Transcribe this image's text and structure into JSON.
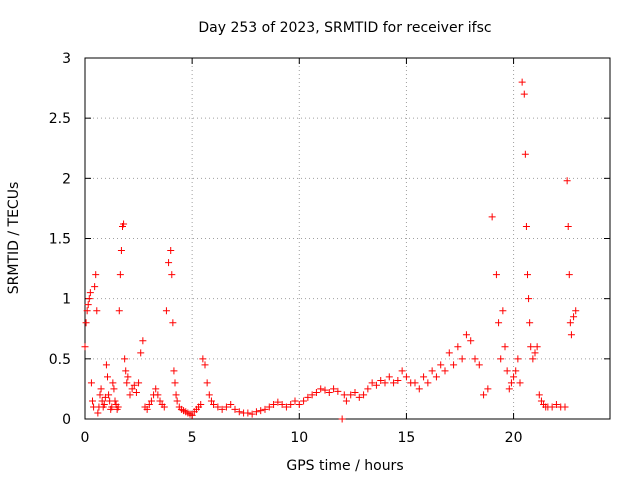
{
  "chart_data": {
    "type": "scatter",
    "title": "Day 253 of 2023, SRMTID for receiver ifsc",
    "xlabel": "GPS time / hours",
    "ylabel": "SRMTID / TECUs",
    "xlim": [
      0,
      24.5
    ],
    "ylim": [
      0,
      3
    ],
    "x_ticks": [
      "0",
      "5",
      "10",
      "15",
      "20"
    ],
    "x_tick_values": [
      0,
      5,
      10,
      15,
      20
    ],
    "y_ticks": [
      "0",
      "0.5",
      "1",
      "1.5",
      "2",
      "2.5",
      "3"
    ],
    "y_tick_values": [
      0,
      0.5,
      1,
      1.5,
      2,
      2.5,
      3
    ],
    "grid": true,
    "marker": "+",
    "color": "#ff0000",
    "series": [
      {
        "name": "SRMTID",
        "x": [
          0.0,
          0.05,
          0.1,
          0.15,
          0.2,
          0.25,
          0.3,
          0.35,
          0.4,
          0.45,
          0.5,
          0.55,
          0.6,
          0.65,
          0.7,
          0.75,
          0.8,
          0.85,
          0.9,
          0.95,
          1.0,
          1.05,
          1.1,
          1.15,
          1.2,
          1.25,
          1.3,
          1.35,
          1.4,
          1.45,
          1.5,
          1.55,
          1.6,
          1.65,
          1.7,
          1.75,
          1.8,
          1.85,
          1.9,
          1.95,
          2.0,
          2.1,
          2.2,
          2.3,
          2.4,
          2.5,
          2.6,
          2.7,
          2.8,
          2.9,
          3.0,
          3.1,
          3.2,
          3.3,
          3.4,
          3.5,
          3.6,
          3.7,
          3.8,
          3.9,
          4.0,
          4.05,
          4.1,
          4.15,
          4.2,
          4.25,
          4.3,
          4.4,
          4.5,
          4.6,
          4.7,
          4.8,
          4.9,
          5.0,
          5.1,
          5.2,
          5.3,
          5.4,
          5.5,
          5.6,
          5.7,
          5.8,
          5.9,
          6.0,
          6.2,
          6.4,
          6.6,
          6.8,
          7.0,
          7.2,
          7.4,
          7.6,
          7.8,
          8.0,
          8.2,
          8.4,
          8.6,
          8.8,
          9.0,
          9.2,
          9.4,
          9.6,
          9.8,
          10.0,
          10.2,
          10.4,
          10.6,
          10.8,
          11.0,
          11.2,
          11.4,
          11.6,
          11.8,
          12.0,
          12.1,
          12.2,
          12.4,
          12.6,
          12.8,
          13.0,
          13.2,
          13.4,
          13.6,
          13.8,
          14.0,
          14.2,
          14.4,
          14.6,
          14.8,
          15.0,
          15.2,
          15.4,
          15.6,
          15.8,
          16.0,
          16.2,
          16.4,
          16.6,
          16.8,
          17.0,
          17.2,
          17.4,
          17.6,
          17.8,
          18.0,
          18.2,
          18.4,
          18.6,
          18.8,
          19.0,
          19.2,
          19.3,
          19.4,
          19.5,
          19.6,
          19.7,
          19.8,
          19.9,
          20.0,
          20.1,
          20.2,
          20.3,
          20.4,
          20.5,
          20.55,
          20.6,
          20.65,
          20.7,
          20.75,
          20.8,
          20.9,
          21.0,
          21.1,
          21.2,
          21.3,
          21.4,
          21.5,
          21.6,
          21.8,
          22.0,
          22.2,
          22.4,
          22.5,
          22.55,
          22.6,
          22.65,
          22.7,
          22.8,
          22.9
        ],
        "y": [
          0.6,
          0.8,
          0.9,
          0.95,
          1.0,
          1.05,
          0.3,
          0.15,
          0.1,
          1.1,
          1.2,
          0.9,
          0.05,
          0.1,
          0.2,
          0.25,
          0.15,
          0.1,
          0.12,
          0.18,
          0.45,
          0.35,
          0.2,
          0.15,
          0.08,
          0.1,
          0.3,
          0.25,
          0.15,
          0.12,
          0.08,
          0.1,
          0.9,
          1.2,
          1.4,
          1.6,
          1.62,
          0.5,
          0.4,
          0.3,
          0.35,
          0.2,
          0.25,
          0.28,
          0.22,
          0.3,
          0.55,
          0.65,
          0.1,
          0.08,
          0.12,
          0.15,
          0.2,
          0.25,
          0.2,
          0.15,
          0.12,
          0.1,
          0.9,
          1.3,
          1.4,
          1.2,
          0.8,
          0.4,
          0.3,
          0.2,
          0.15,
          0.1,
          0.08,
          0.07,
          0.06,
          0.05,
          0.04,
          0.03,
          0.06,
          0.08,
          0.1,
          0.12,
          0.5,
          0.45,
          0.3,
          0.2,
          0.15,
          0.12,
          0.1,
          0.08,
          0.1,
          0.12,
          0.08,
          0.06,
          0.05,
          0.05,
          0.04,
          0.06,
          0.07,
          0.08,
          0.1,
          0.12,
          0.14,
          0.12,
          0.1,
          0.12,
          0.15,
          0.12,
          0.15,
          0.18,
          0.2,
          0.22,
          0.25,
          0.24,
          0.22,
          0.25,
          0.23,
          0.0,
          0.2,
          0.15,
          0.2,
          0.22,
          0.18,
          0.2,
          0.25,
          0.3,
          0.28,
          0.32,
          0.3,
          0.35,
          0.3,
          0.32,
          0.4,
          0.35,
          0.3,
          0.3,
          0.25,
          0.35,
          0.3,
          0.4,
          0.35,
          0.45,
          0.4,
          0.55,
          0.45,
          0.6,
          0.5,
          0.7,
          0.65,
          0.5,
          0.45,
          0.2,
          0.25,
          1.68,
          1.2,
          0.8,
          0.5,
          0.9,
          0.6,
          0.4,
          0.25,
          0.3,
          0.35,
          0.4,
          0.5,
          0.3,
          2.8,
          2.7,
          2.2,
          1.6,
          1.2,
          1.0,
          0.8,
          0.6,
          0.5,
          0.55,
          0.6,
          0.2,
          0.15,
          0.12,
          0.1,
          0.1,
          0.1,
          0.12,
          0.1,
          0.1,
          1.98,
          1.6,
          1.2,
          0.8,
          0.7,
          0.85,
          0.9
        ],
        "extra_points": []
      }
    ]
  }
}
